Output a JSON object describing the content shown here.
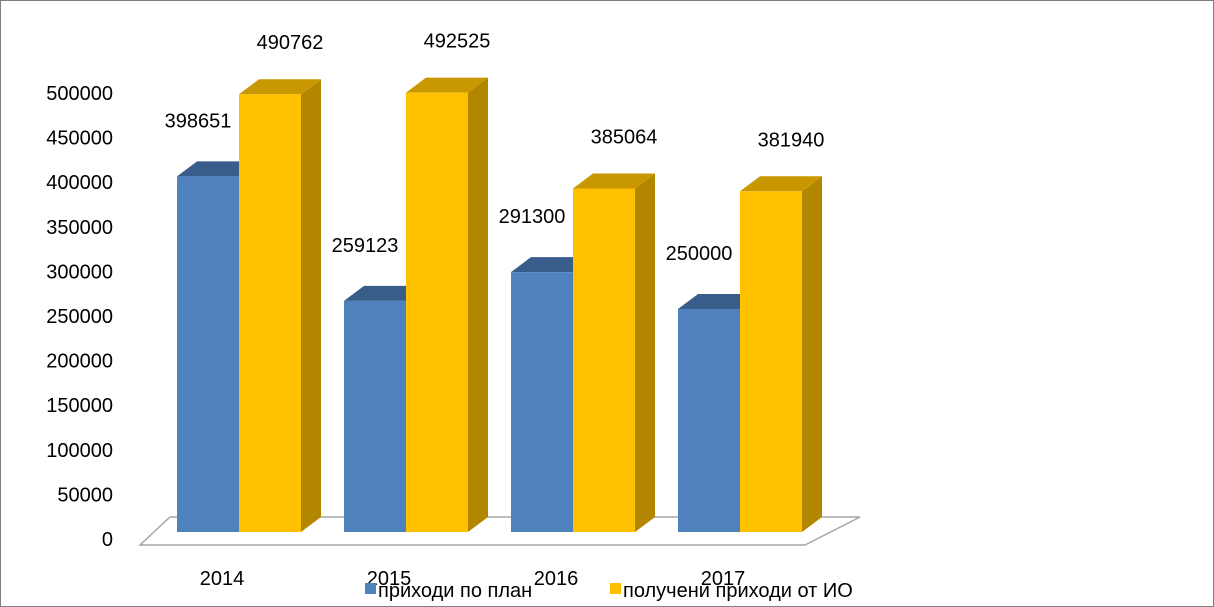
{
  "colors": {
    "series1_front": "#4F81BD",
    "series1_side": "#3A6090",
    "series1_top": "#385D8A",
    "series2_front": "#FFC000",
    "series2_side": "#B38600",
    "series2_top": "#C99700",
    "floor": "#FFFFFF",
    "border": "#7F7F7F"
  },
  "chart_data": {
    "type": "bar",
    "variant": "3d-clustered-column",
    "title": "",
    "xlabel": "",
    "ylabel": "",
    "categories": [
      "2014",
      "2015",
      "2016",
      "2017"
    ],
    "series": [
      {
        "name": "приходи по план",
        "values": [
          398651,
          259123,
          291300,
          250000
        ],
        "labels": [
          "398651",
          "259123",
          "291300",
          "250000"
        ]
      },
      {
        "name": "получени приходи от ИО",
        "values": [
          490762,
          492525,
          385064,
          381940
        ],
        "labels": [
          "490762",
          "492525",
          "385064",
          "381940"
        ]
      }
    ],
    "ylim": [
      0,
      500000
    ],
    "yticks": [
      0,
      50000,
      100000,
      150000,
      200000,
      250000,
      300000,
      350000,
      400000,
      450000,
      500000
    ],
    "ytick_labels": [
      "0",
      "50000",
      "100000",
      "150000",
      "200000",
      "250000",
      "300000",
      "350000",
      "400000",
      "450000",
      "500000"
    ],
    "grid": false,
    "legend_position": "bottom"
  }
}
